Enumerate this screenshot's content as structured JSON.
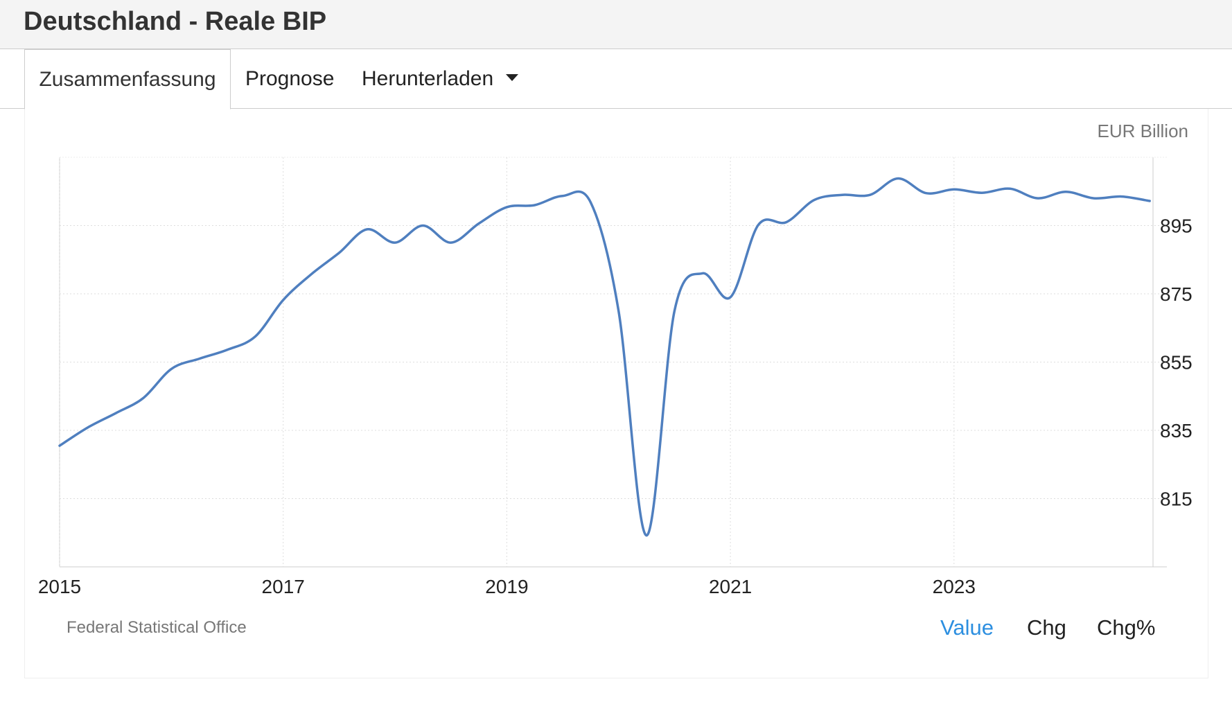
{
  "header": {
    "title": "Deutschland - Reale BIP"
  },
  "tabs": [
    {
      "label": "Zusammenfassung",
      "active": true
    },
    {
      "label": "Prognose",
      "active": false
    },
    {
      "label": "Herunterladen",
      "active": false,
      "icon": "caret-down-icon"
    }
  ],
  "chart": {
    "unit_label": "EUR Billion",
    "source": "Federal Statistical Office",
    "modes": [
      {
        "label": "Value",
        "active": true
      },
      {
        "label": "Chg",
        "active": false
      },
      {
        "label": "Chg%",
        "active": false
      }
    ]
  },
  "colors": {
    "line": "#4f7fbf",
    "active_mode": "#2d8fe0",
    "grid": "#dddddd"
  },
  "chart_data": {
    "type": "line",
    "title": "",
    "xlabel": "",
    "ylabel": "EUR Billion",
    "x_ticks": [
      "2015",
      "2017",
      "2019",
      "2021",
      "2023"
    ],
    "y_ticks": [
      815,
      835,
      855,
      875,
      895
    ],
    "xlim": [
      2015.0,
      2024.78
    ],
    "ylim": [
      795,
      915
    ],
    "grid": true,
    "series": [
      {
        "name": "",
        "x": [
          2015.0,
          2015.25,
          2015.5,
          2015.75,
          2016.0,
          2016.25,
          2016.5,
          2016.75,
          2017.0,
          2017.25,
          2017.5,
          2017.75,
          2018.0,
          2018.25,
          2018.5,
          2018.75,
          2019.0,
          2019.25,
          2019.5,
          2019.75,
          2020.0,
          2020.25,
          2020.5,
          2020.75,
          2021.0,
          2021.25,
          2021.5,
          2021.75,
          2022.0,
          2022.25,
          2022.5,
          2022.75,
          2023.0,
          2023.25,
          2023.5,
          2023.75,
          2024.0,
          2024.25,
          2024.5,
          2024.75
        ],
        "values": [
          830.5,
          835.8,
          840.0,
          844.5,
          853.0,
          856.0,
          858.6,
          862.5,
          873.2,
          880.7,
          887.0,
          893.9,
          890.0,
          895.0,
          890.0,
          895.6,
          900.4,
          901.0,
          903.7,
          901.8,
          870.0,
          804.2,
          870.0,
          881.0,
          874.0,
          895.2,
          896.0,
          902.5,
          904.0,
          904.0,
          908.8,
          904.5,
          905.6,
          904.6,
          905.8,
          903.0,
          904.9,
          903.0,
          903.5,
          902.2
        ]
      }
    ]
  }
}
